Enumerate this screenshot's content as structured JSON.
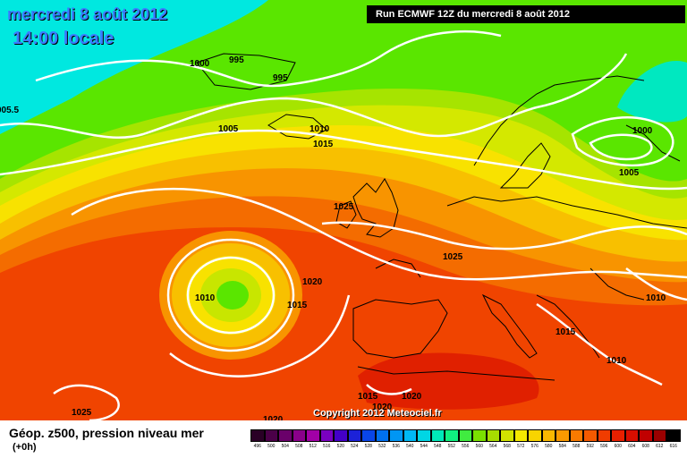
{
  "header": {
    "date": "mercredi 8 août 2012",
    "time": "14:00 locale",
    "run": "Run ECMWF 12Z du mercredi 8 août 2012"
  },
  "copyright": "Copyright 2012 Meteociel.fr",
  "legend": {
    "title": "Géop. z500, pression niveau mer",
    "subtitle": "(+0h)",
    "values": [
      "496",
      "500",
      "504",
      "508",
      "512",
      "516",
      "520",
      "524",
      "528",
      "532",
      "536",
      "540",
      "544",
      "548",
      "552",
      "556",
      "560",
      "564",
      "568",
      "572",
      "576",
      "580",
      "584",
      "588",
      "592",
      "596",
      "600",
      "604",
      "608",
      "612",
      "616"
    ],
    "colors": [
      "#2a0026",
      "#4b0048",
      "#6a006a",
      "#8a008a",
      "#a200a6",
      "#7a00c0",
      "#4400c8",
      "#1c22d8",
      "#0a46e8",
      "#0070f0",
      "#0096f4",
      "#00b8f4",
      "#00d6e4",
      "#00e8b8",
      "#10f080",
      "#40ec40",
      "#7ae000",
      "#a6dc00",
      "#d2e400",
      "#f4e800",
      "#f8d400",
      "#fab800",
      "#fa9a00",
      "#f87a00",
      "#f45a00",
      "#f03c00",
      "#e82000",
      "#d80e00",
      "#c00000",
      "#9a0000",
      "#000000"
    ]
  },
  "map_colors": {
    "cyan": "#00e8e0",
    "green": "#5ae600",
    "light_green": "#a6e400",
    "yellow_green": "#d4e800",
    "yellow": "#f8e200",
    "light_orange": "#f8c000",
    "orange": "#f89400",
    "dark_orange": "#f46c00",
    "red": "#f04400",
    "dark_red": "#e02000",
    "isobar": "#ffffff",
    "coast": "#000000"
  },
  "isobar_labels": [
    {
      "text": "1000"
    },
    {
      "text": "995"
    },
    {
      "text": "995"
    },
    {
      "text": "1005"
    },
    {
      "text": "1010"
    },
    {
      "text": "1015"
    },
    {
      "text": "005.5"
    },
    {
      "text": "1000"
    },
    {
      "text": "1005"
    },
    {
      "text": "1025"
    },
    {
      "text": "1025"
    },
    {
      "text": "1020"
    },
    {
      "text": "1010"
    },
    {
      "text": "1015"
    },
    {
      "text": "1010"
    },
    {
      "text": "1015"
    },
    {
      "text": "1010"
    },
    {
      "text": "1015"
    },
    {
      "text": "1020"
    },
    {
      "text": "1020"
    },
    {
      "text": "1025"
    },
    {
      "text": "1020"
    }
  ]
}
